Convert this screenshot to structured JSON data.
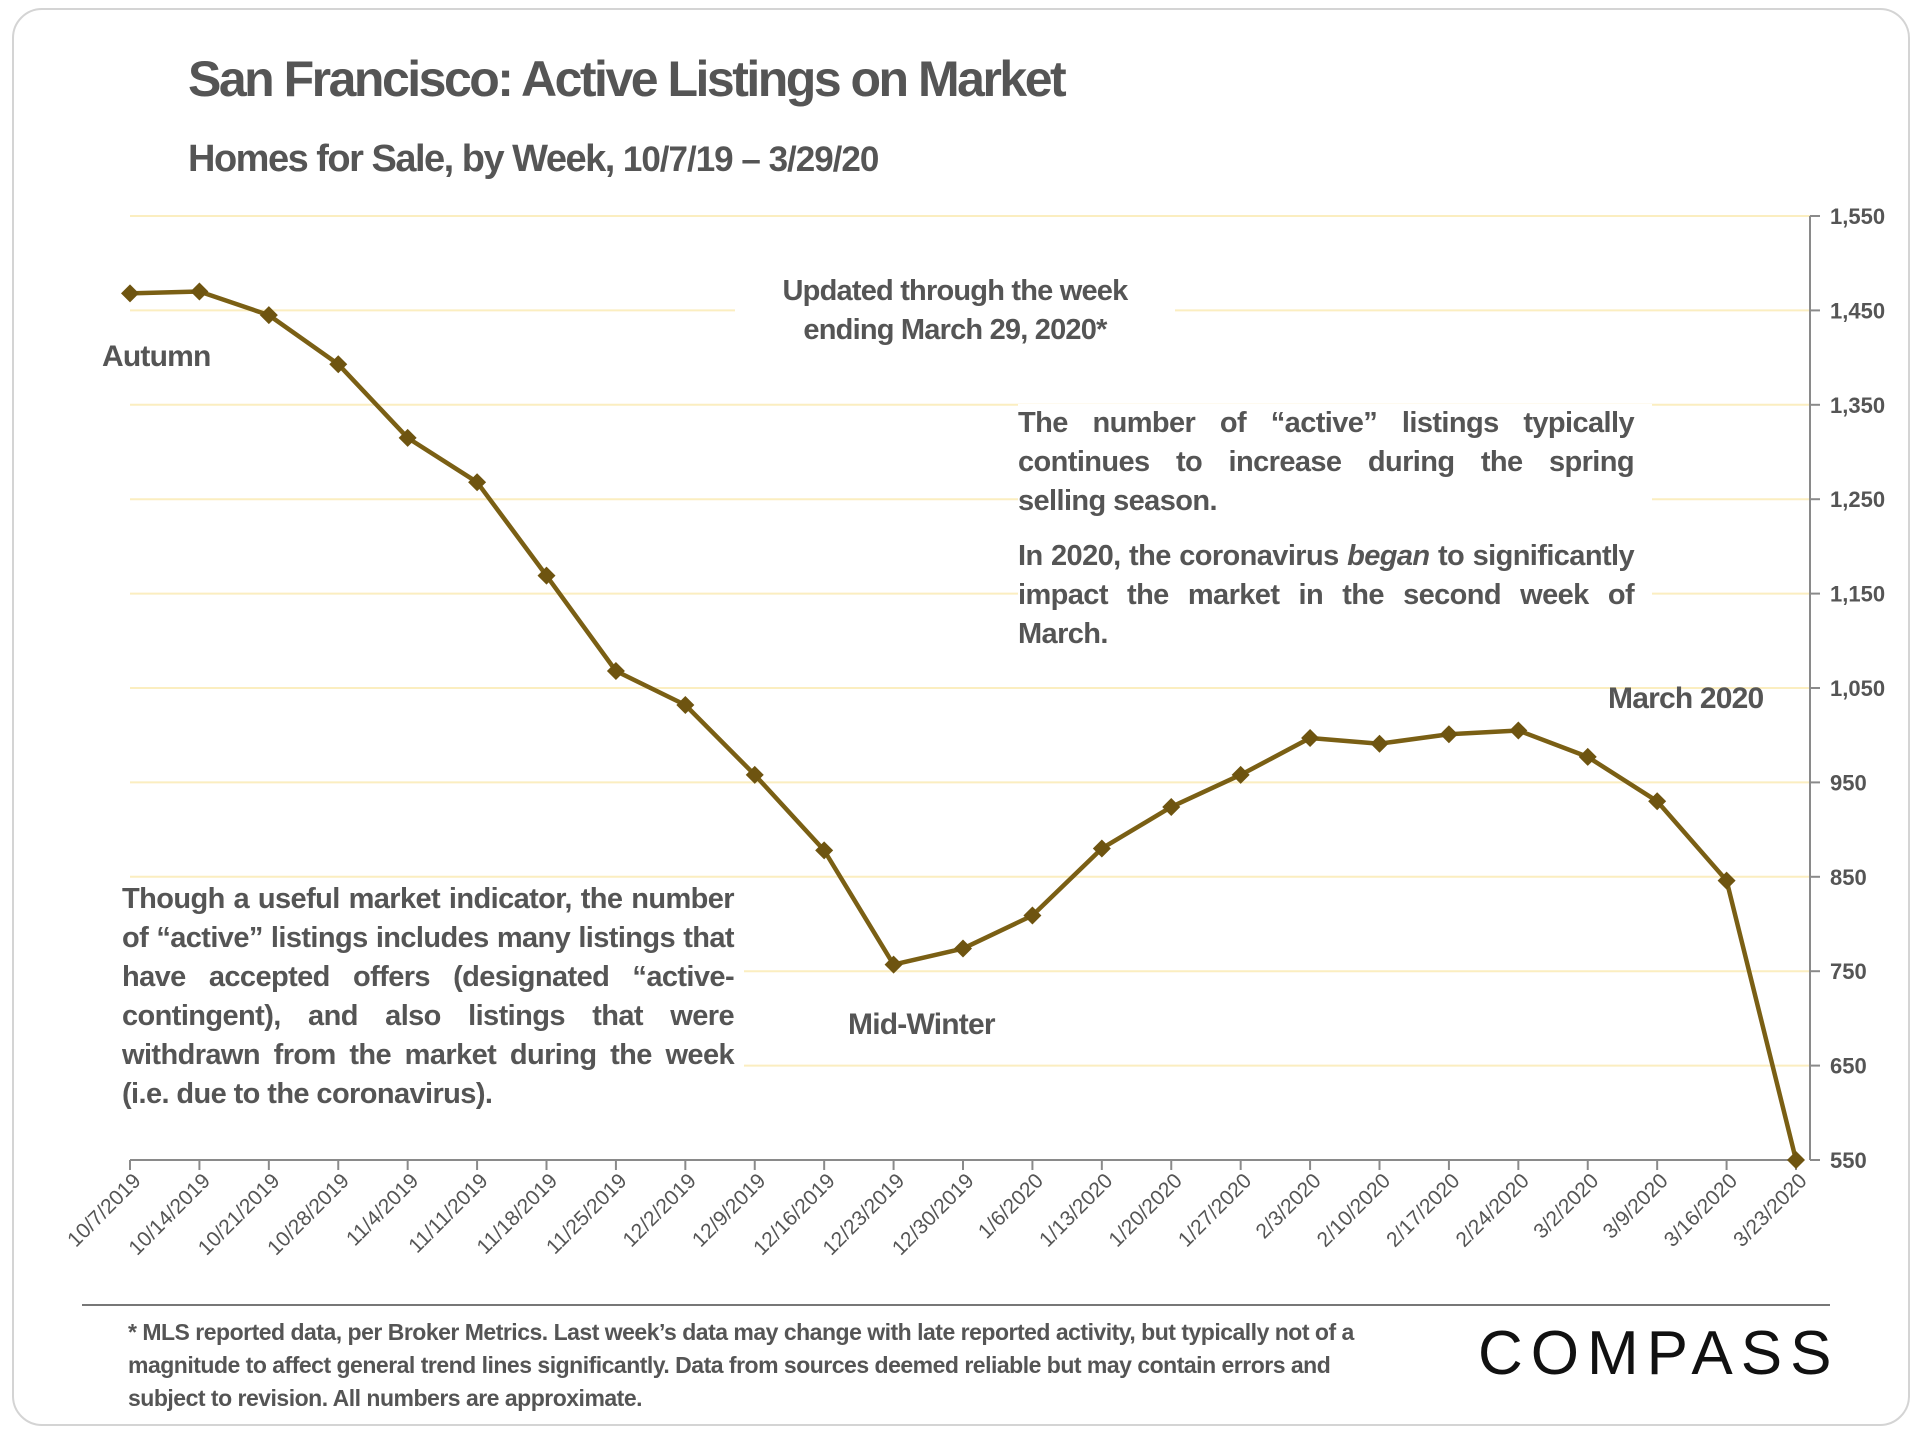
{
  "title": "San Francisco: Active Listings on Market",
  "subtitle_main": "Homes for Sale, by Week,",
  "subtitle_dates": "10/7/19 – 3/29/20",
  "annotations": {
    "updated_line1": "Updated through the week",
    "updated_line2": "ending March 29, 2020*",
    "autumn": "Autumn",
    "mid_winter": "Mid-Winter",
    "march_2020": "March 2020",
    "spring_note_1": "The number of “active” listings typically continues to increase during the spring selling season.",
    "spring_note_2_a": "In 2020, the coronavirus ",
    "spring_note_2_em": "began",
    "spring_note_2_b": " to significantly impact the market in the second week of March.",
    "indicator_note": "Though a useful market indicator, the number of “active” listings includes many listings that have accepted offers (designated “active-contingent), and also listings that were withdrawn from the market during the week (i.e. due to the coronavirus)."
  },
  "footnote": "* MLS reported data, per Broker Metrics. Last week’s data may change with late reported activity, but typically not of a magnitude to affect general trend lines significantly. Data from sources deemed reliable but may contain errors and subject to revision. All numbers are approximate.",
  "logo": "COMPASS",
  "colors": {
    "line": "#7a5f14",
    "marker": "#6e5410",
    "grid": "#fbeec0",
    "text": "#555555"
  },
  "chart_data": {
    "type": "line",
    "title": "San Francisco: Active Listings on Market",
    "subtitle": "Homes for Sale, by Week, 10/7/19 – 3/29/20",
    "x": [
      "10/7/2019",
      "10/14/2019",
      "10/21/2019",
      "10/28/2019",
      "11/4/2019",
      "11/11/2019",
      "11/18/2019",
      "11/25/2019",
      "12/2/2019",
      "12/9/2019",
      "12/16/2019",
      "12/23/2019",
      "12/30/2019",
      "1/6/2020",
      "1/13/2020",
      "1/20/2020",
      "1/27/2020",
      "2/3/2020",
      "2/10/2020",
      "2/17/2020",
      "2/24/2020",
      "3/2/2020",
      "3/9/2020",
      "3/16/2020",
      "3/23/2020"
    ],
    "series": [
      {
        "values": [
          1468,
          1470,
          1445,
          1393,
          1315,
          1268,
          1169,
          1068,
          1032,
          958,
          878,
          757,
          774,
          809,
          880,
          924,
          958,
          997,
          991,
          1001,
          1005,
          977,
          930,
          846,
          550
        ]
      }
    ],
    "ylim": [
      550,
      1550
    ],
    "yticks": [
      550,
      650,
      750,
      850,
      950,
      1050,
      1150,
      1250,
      1350,
      1450,
      1550
    ],
    "ytick_labels": [
      "550",
      "650",
      "750",
      "850",
      "950",
      "1,050",
      "1,150",
      "1,250",
      "1,350",
      "1,450",
      "1,550"
    ],
    "y_axis_side": "right",
    "grid": true,
    "marker": "diamond"
  }
}
